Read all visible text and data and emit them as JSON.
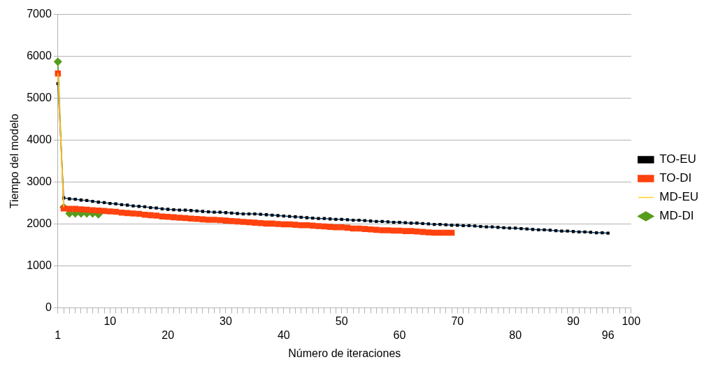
{
  "chart_data": {
    "type": "line",
    "xlabel": "Número de iteraciones",
    "ylabel": "Tiempo del modelo",
    "categories": [
      "1",
      null,
      null,
      null,
      null,
      null,
      null,
      null,
      null,
      "10",
      null,
      null,
      null,
      null,
      null,
      null,
      null,
      null,
      null,
      "20",
      null,
      null,
      null,
      null,
      null,
      null,
      null,
      null,
      null,
      "30",
      null,
      null,
      null,
      null,
      null,
      null,
      null,
      null,
      null,
      "40",
      null,
      null,
      null,
      null,
      null,
      null,
      null,
      null,
      null,
      "50",
      null,
      null,
      null,
      null,
      null,
      null,
      null,
      null,
      null,
      "60",
      null,
      null,
      null,
      null,
      null,
      null,
      null,
      null,
      null,
      "70",
      null,
      null,
      null,
      null,
      null,
      null,
      null,
      null,
      null,
      "80",
      null,
      null,
      null,
      null,
      null,
      null,
      null,
      null,
      null,
      "90",
      null,
      null,
      null,
      null,
      null,
      "96",
      null,
      null,
      null,
      "100"
    ],
    "ylim": [
      0,
      7000
    ],
    "yticks": [
      0,
      1000,
      2000,
      3000,
      4000,
      5000,
      6000,
      7000
    ],
    "grid": "y",
    "legend": "right",
    "series": [
      {
        "name": "TO-EU",
        "color": "#004586",
        "marker": "square",
        "values": [
          5350,
          2620,
          2600,
          2590,
          2570,
          2560,
          2540,
          2520,
          2510,
          2490,
          2480,
          2460,
          2450,
          2430,
          2420,
          2410,
          2390,
          2380,
          2360,
          2350,
          2340,
          2330,
          2330,
          2320,
          2310,
          2300,
          2290,
          2280,
          2280,
          2270,
          2260,
          2250,
          2240,
          2240,
          2240,
          2230,
          2220,
          2210,
          2200,
          2190,
          2180,
          2170,
          2160,
          2150,
          2140,
          2130,
          2130,
          2120,
          2110,
          2110,
          2100,
          2090,
          2090,
          2080,
          2070,
          2060,
          2060,
          2050,
          2040,
          2040,
          2030,
          2020,
          2020,
          2010,
          2000,
          1990,
          1990,
          1980,
          1970,
          1970,
          1960,
          1960,
          1950,
          1940,
          1930,
          1930,
          1920,
          1910,
          1900,
          1900,
          1890,
          1880,
          1870,
          1860,
          1860,
          1850,
          1840,
          1830,
          1830,
          1820,
          1810,
          1810,
          1800,
          1790,
          1790,
          1780,
          null,
          null,
          null,
          null
        ]
      },
      {
        "name": "TO-DI",
        "color": "#ff420e",
        "marker": "square",
        "values": [
          5590,
          2370,
          2360,
          2360,
          2350,
          2340,
          2330,
          2320,
          2310,
          2300,
          2290,
          2270,
          2260,
          2250,
          2240,
          2220,
          2210,
          2200,
          2180,
          2170,
          2160,
          2150,
          2140,
          2130,
          2120,
          2110,
          2100,
          2100,
          2090,
          2080,
          2070,
          2060,
          2050,
          2040,
          2030,
          2020,
          2010,
          2010,
          2000,
          1990,
          1990,
          1980,
          1970,
          1970,
          1960,
          1950,
          1940,
          1930,
          1920,
          1920,
          1910,
          1890,
          1890,
          1880,
          1870,
          1860,
          1850,
          1850,
          1840,
          1840,
          1830,
          1830,
          1820,
          1810,
          1800,
          1790,
          1790,
          1790,
          1790,
          null,
          null,
          null,
          null,
          null,
          null,
          null,
          null,
          null,
          null,
          null,
          null,
          null,
          null,
          null,
          null,
          null,
          null,
          null,
          null,
          null,
          null,
          null,
          null,
          null,
          null,
          null,
          null,
          null,
          null,
          null
        ]
      },
      {
        "name": "MD-EU",
        "color": "#ffd320",
        "marker": "none",
        "values": [
          5600,
          2400,
          null,
          null,
          null,
          null,
          null,
          null,
          null,
          null,
          null,
          null,
          null,
          null,
          null,
          null,
          null,
          null,
          null,
          null,
          null,
          null,
          null,
          null,
          null,
          null,
          null,
          null,
          null,
          null,
          null,
          null,
          null,
          null,
          null,
          null,
          null,
          null,
          null,
          null,
          null,
          null,
          null,
          null,
          null,
          null,
          null,
          null,
          null,
          null,
          null,
          null,
          null,
          null,
          null,
          null,
          null,
          null,
          null,
          null,
          null,
          null,
          null,
          null,
          null,
          null,
          null,
          null,
          null,
          null,
          null,
          null,
          null,
          null,
          null,
          null,
          null,
          null,
          null,
          null,
          null,
          null,
          null,
          null,
          null,
          null,
          null,
          null,
          null,
          null,
          null,
          null,
          null,
          null,
          null,
          null,
          null,
          null,
          null,
          null
        ]
      },
      {
        "name": "MD-DI",
        "color": "#579d1c",
        "marker": "diamond",
        "values": [
          5870,
          2400,
          2250,
          2250,
          2250,
          2250,
          2250,
          2230,
          null,
          null,
          null,
          null,
          null,
          null,
          null,
          null,
          null,
          null,
          null,
          null,
          null,
          null,
          null,
          null,
          null,
          null,
          null,
          null,
          null,
          null,
          null,
          null,
          null,
          null,
          null,
          null,
          null,
          null,
          null,
          null,
          null,
          null,
          null,
          null,
          null,
          null,
          null,
          null,
          null,
          null,
          null,
          null,
          null,
          null,
          null,
          null,
          null,
          null,
          null,
          null,
          null,
          null,
          null,
          null,
          null,
          null,
          null,
          null,
          null,
          null,
          null,
          null,
          null,
          null,
          null,
          null,
          null,
          null,
          null,
          null,
          null,
          null,
          null,
          null,
          null,
          null,
          null,
          null,
          null,
          null,
          null,
          null,
          null,
          null,
          null,
          null,
          null,
          null,
          null,
          null
        ]
      }
    ]
  }
}
